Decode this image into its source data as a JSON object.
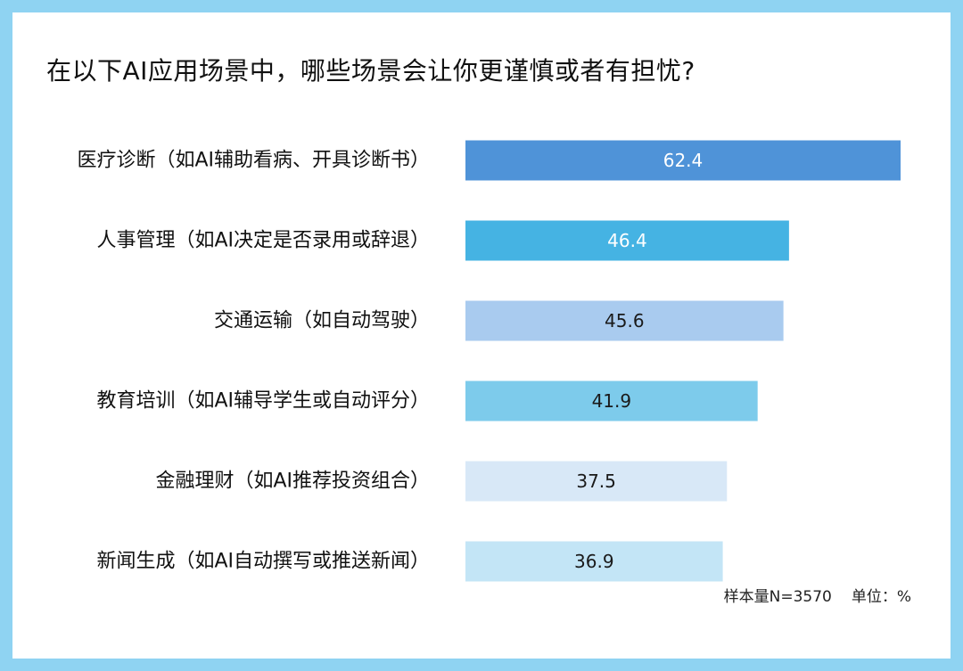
{
  "chart_data": {
    "type": "bar",
    "orientation": "horizontal",
    "title": "在以下AI应用场景中，哪些场景会让你更谨慎或者有担忧?",
    "categories": [
      "医疗诊断（如AI辅助看病、开具诊断书）",
      "人事管理（如AI决定是否录用或辞退）",
      "交通运输（如自动驾驶）",
      "教育培训（如AI辅导学生或自动评分）",
      "金融理财（如AI推荐投资组合）",
      "新闻生成（如AI自动撰写或推送新闻）"
    ],
    "values": [
      62.4,
      46.4,
      45.6,
      41.9,
      37.5,
      36.9
    ],
    "value_labels": [
      "62.4",
      "46.4",
      "45.6",
      "41.9",
      "37.5",
      "36.9"
    ],
    "colors": [
      "#4f93d8",
      "#45b3e3",
      "#a9cbef",
      "#7dcbeb",
      "#d8e8f7",
      "#c3e5f6"
    ],
    "label_colors": [
      "#ffffff",
      "#ffffff",
      "#1a1a1a",
      "#1a1a1a",
      "#1a1a1a",
      "#1a1a1a"
    ],
    "xlim": [
      0,
      62.4
    ],
    "grid": false,
    "legend": "none"
  },
  "footnote": {
    "sample": "样本量N=3570",
    "unit": "单位：%"
  }
}
